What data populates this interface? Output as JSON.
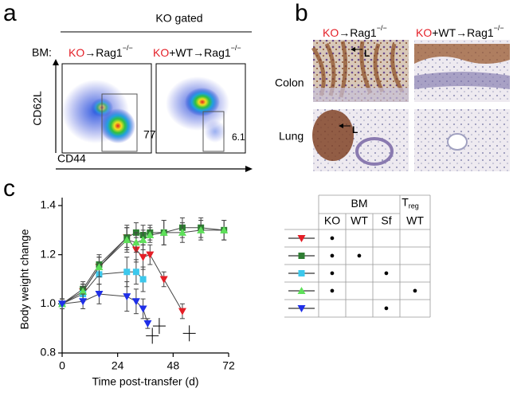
{
  "panel_a": {
    "label": "a",
    "gate_title": "KO gated",
    "bm_label": "BM:",
    "conditions": [
      {
        "ko": "KO",
        "rest": "→Rag1",
        "sup": "−/−"
      },
      {
        "ko": "KO",
        "rest": "+WT→Rag1",
        "sup": "−/−"
      }
    ],
    "y_axis": "CD62L",
    "x_axis": "CD44",
    "gate_percentages": [
      77,
      6.1
    ]
  },
  "panel_b": {
    "label": "b",
    "conditions": [
      {
        "ko": "KO",
        "rest": "→Rag1",
        "sup": "−/−"
      },
      {
        "ko": "KO",
        "rest": "+WT→Rag1",
        "sup": "−/−"
      }
    ],
    "rows": [
      "Colon",
      "Lung"
    ],
    "annotations": [
      "L",
      "L"
    ]
  },
  "panel_c_label": "c",
  "chart_data": {
    "type": "line",
    "xlabel": "Time post-transfer (d)",
    "ylabel": "Body weight change",
    "xlim": [
      0,
      72
    ],
    "xticks": [
      0,
      24,
      48,
      72
    ],
    "ylim": [
      0.8,
      1.4
    ],
    "yticks": [
      0.8,
      {
        "value": 1.0,
        "label": "1.0"
      },
      1.2,
      1.4
    ],
    "series": [
      {
        "color": "#e41e26",
        "marker": "tri-down",
        "x": [
          0,
          9,
          16,
          28,
          32,
          35,
          38,
          44,
          52
        ],
        "values": [
          1.0,
          1.05,
          1.15,
          1.27,
          1.22,
          1.19,
          1.2,
          1.1,
          0.97
        ],
        "errors": [
          0.02,
          0.03,
          0.04,
          0.04,
          0.05,
          0.05,
          0.04,
          0.03,
          0.03
        ]
      },
      {
        "color": "#2e7d32",
        "marker": "square",
        "x": [
          0,
          9,
          16,
          28,
          32,
          35,
          38,
          44,
          52,
          60,
          70
        ],
        "values": [
          1.0,
          1.06,
          1.16,
          1.27,
          1.29,
          1.28,
          1.29,
          1.29,
          1.31,
          1.31,
          1.3
        ],
        "errors": [
          0.02,
          0.03,
          0.04,
          0.05,
          0.04,
          0.04,
          0.03,
          0.05,
          0.04,
          0.04,
          0.04
        ]
      },
      {
        "color": "#3cc8ec",
        "marker": "square",
        "x": [
          0,
          9,
          16,
          28,
          32,
          35
        ],
        "values": [
          1.0,
          1.04,
          1.12,
          1.13,
          1.13,
          1.1
        ],
        "errors": [
          0.02,
          0.03,
          0.04,
          0.06,
          0.05,
          0.05
        ]
      },
      {
        "color": "#5ee05a",
        "marker": "tri-up",
        "x": [
          0,
          9,
          16,
          28,
          32,
          35,
          38,
          44,
          52,
          60,
          70
        ],
        "values": [
          1.0,
          1.05,
          1.15,
          1.26,
          1.25,
          1.26,
          1.28,
          1.29,
          1.29,
          1.3,
          1.3
        ],
        "errors": [
          0.02,
          0.03,
          0.04,
          0.05,
          0.04,
          0.04,
          0.03,
          0.05,
          0.04,
          0.04,
          0.04
        ]
      },
      {
        "color": "#1f2fe8",
        "marker": "tri-down",
        "x": [
          0,
          9,
          16,
          28,
          32,
          35,
          37
        ],
        "values": [
          1.0,
          1.01,
          1.04,
          1.03,
          1.01,
          0.98,
          0.92
        ],
        "errors": [
          0.02,
          0.03,
          0.04,
          0.06,
          0.05,
          0.04,
          0.02
        ]
      },
      {
        "color": "#000000",
        "marker": "cross",
        "x": [
          39,
          42,
          55
        ],
        "values": [
          0.87,
          0.91,
          0.88
        ]
      }
    ]
  },
  "legend_table": {
    "group_headers": [
      "BM",
      {
        "main": "T",
        "sub": "reg"
      }
    ],
    "columns": [
      "KO",
      "WT",
      "Sf",
      "WT"
    ],
    "rows": [
      [
        "●",
        null,
        null,
        null
      ],
      [
        "●",
        "●",
        null,
        null
      ],
      [
        "●",
        null,
        "●",
        null
      ],
      [
        "●",
        null,
        null,
        "●"
      ],
      [
        null,
        null,
        "●",
        null
      ]
    ]
  }
}
